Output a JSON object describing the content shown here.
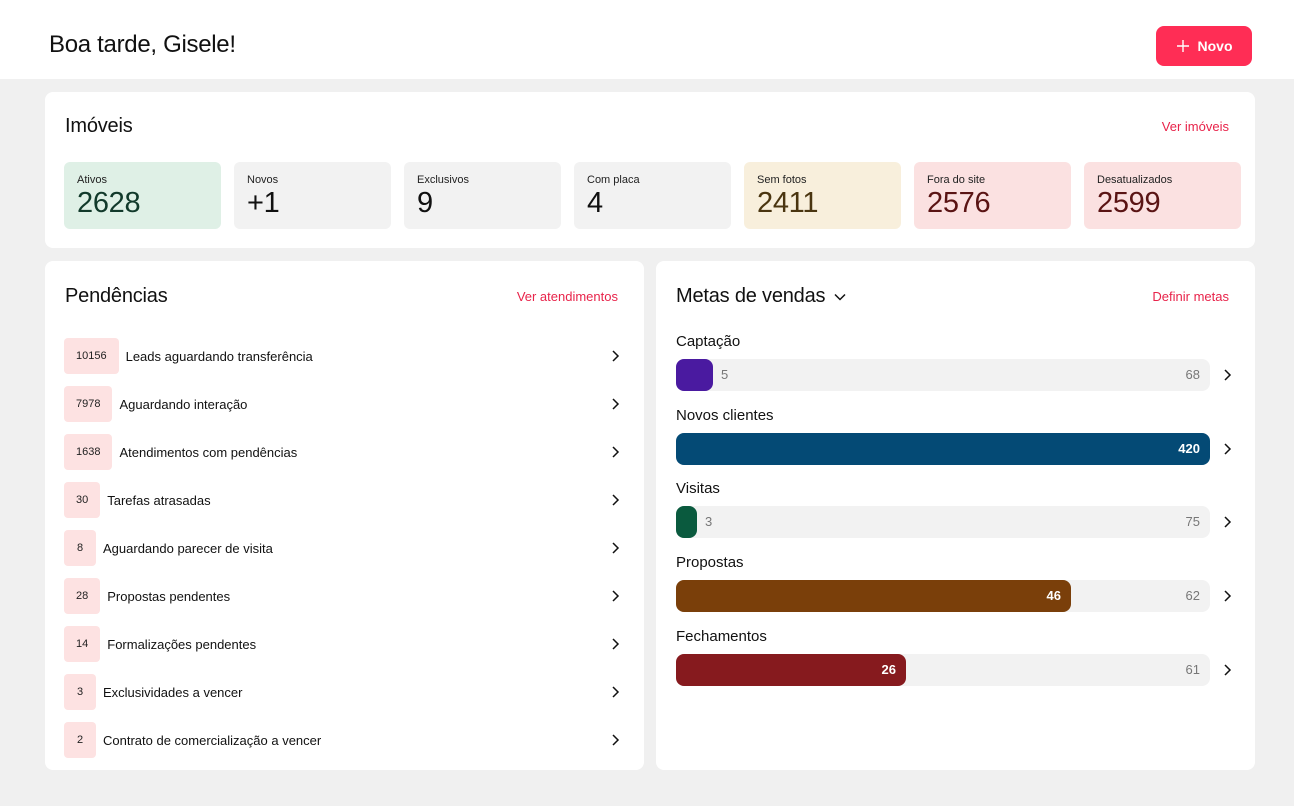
{
  "header": {
    "greeting": "Boa tarde, Gisele!",
    "new_button": "Novo"
  },
  "imoveis": {
    "title": "Imóveis",
    "link": "Ver imóveis",
    "stats": [
      {
        "label": "Ativos",
        "value": "2628",
        "bg": "#dff0e6",
        "color": "#123a2b"
      },
      {
        "label": "Novos",
        "value": "+1",
        "bg": "#f2f2f2",
        "color": "#111111"
      },
      {
        "label": "Exclusivos",
        "value": "9",
        "bg": "#f2f2f2",
        "color": "#111111"
      },
      {
        "label": "Com placa",
        "value": "4",
        "bg": "#f2f2f2",
        "color": "#111111"
      },
      {
        "label": "Sem fotos",
        "value": "2411",
        "bg": "#f8efdc",
        "color": "#4a3510"
      },
      {
        "label": "Fora do site",
        "value": "2576",
        "bg": "#fbe1e1",
        "color": "#5a1414"
      },
      {
        "label": "Desatualizados",
        "value": "2599",
        "bg": "#fbe1e1",
        "color": "#5a1414"
      }
    ]
  },
  "pendencias": {
    "title": "Pendências",
    "link": "Ver atendimentos",
    "items": [
      {
        "count": "10156",
        "label": "Leads aguardando transferência"
      },
      {
        "count": "7978",
        "label": "Aguardando interação"
      },
      {
        "count": "1638",
        "label": "Atendimentos com pendências"
      },
      {
        "count": "30",
        "label": "Tarefas atrasadas"
      },
      {
        "count": "8",
        "label": "Aguardando parecer de visita"
      },
      {
        "count": "28",
        "label": "Propostas pendentes"
      },
      {
        "count": "14",
        "label": "Formalizações pendentes"
      },
      {
        "count": "3",
        "label": "Exclusividades a vencer"
      },
      {
        "count": "2",
        "label": "Contrato de comercialização a vencer"
      }
    ]
  },
  "metas": {
    "title": "Metas de vendas",
    "link": "Definir metas",
    "goals": [
      {
        "name": "Captação",
        "current": "5",
        "target": "68",
        "progress": 0.07,
        "color": "#4a1aa0"
      },
      {
        "name": "Novos clientes",
        "current": "420",
        "target": "",
        "progress": 1.0,
        "color": "#044a75"
      },
      {
        "name": "Visitas",
        "current": "3",
        "target": "75",
        "progress": 0.04,
        "color": "#0a5a3e"
      },
      {
        "name": "Propostas",
        "current": "46",
        "target": "62",
        "progress": 0.74,
        "color": "#7a3f0a"
      },
      {
        "name": "Fechamentos",
        "current": "26",
        "target": "61",
        "progress": 0.43,
        "color": "#861a1e"
      }
    ]
  }
}
